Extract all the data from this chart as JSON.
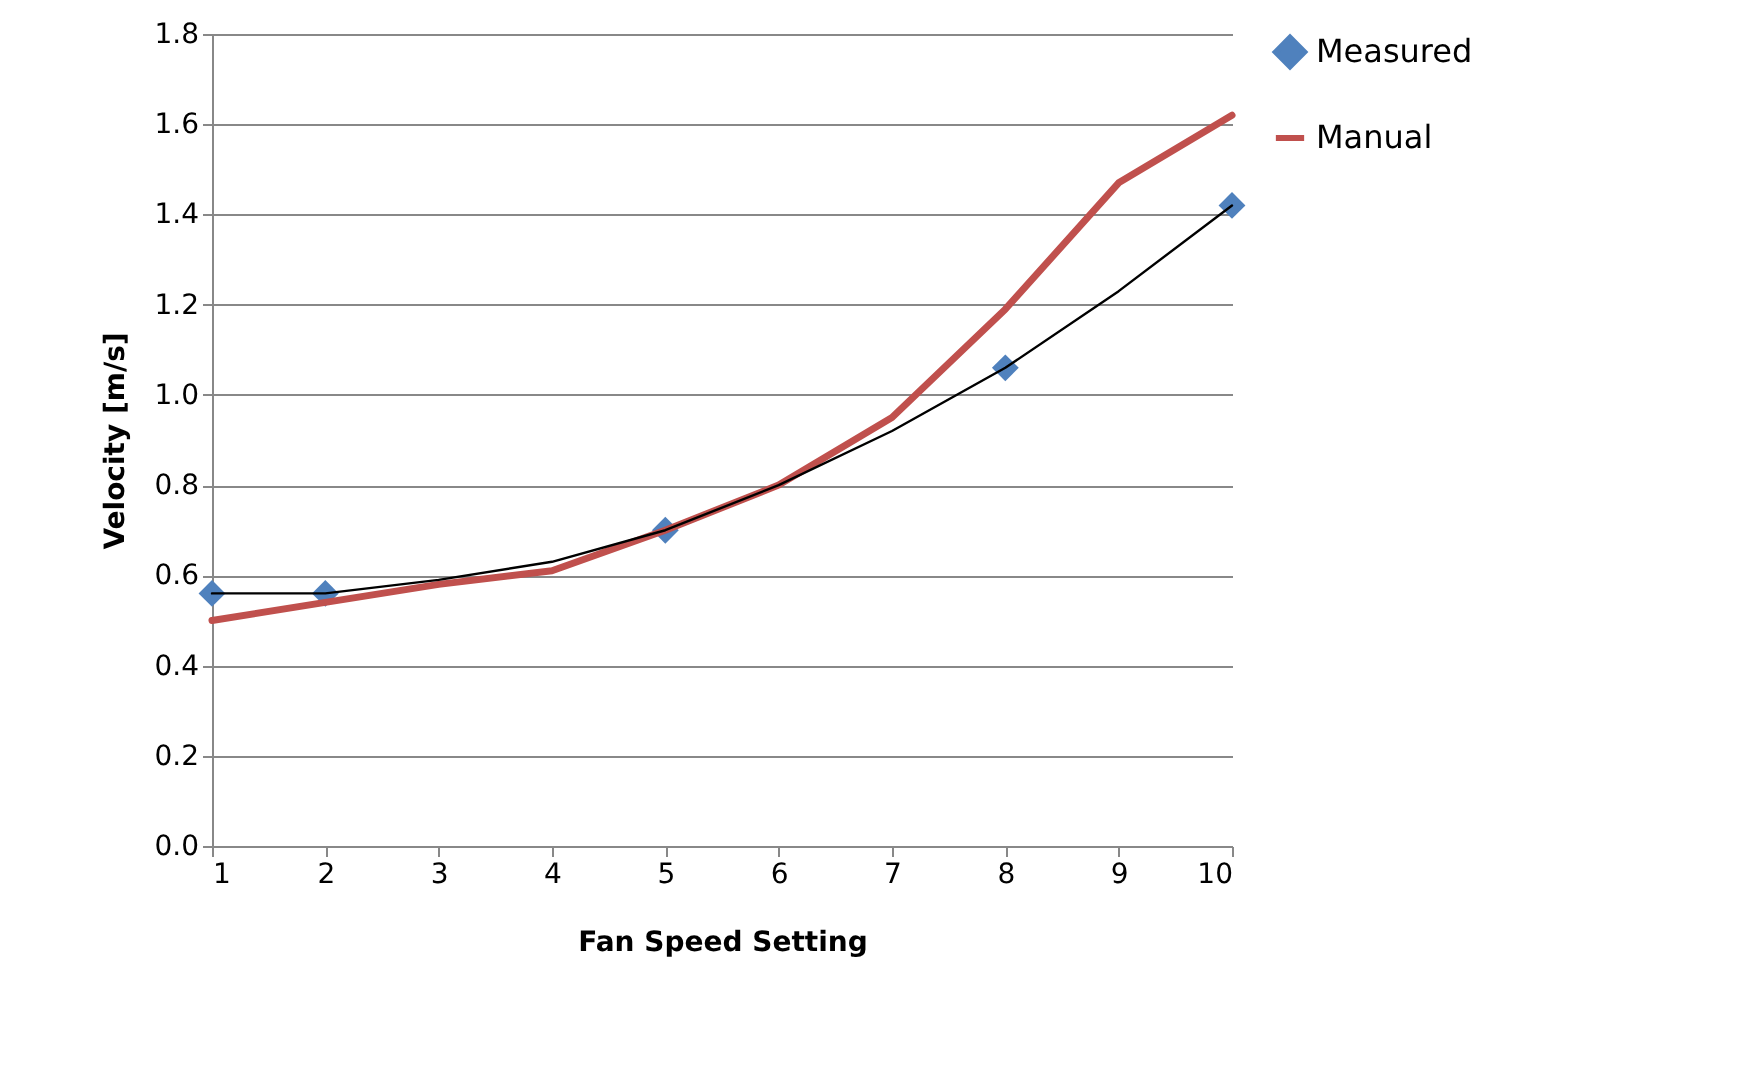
{
  "chart_data": {
    "type": "line",
    "xlabel": "Fan Speed Setting",
    "ylabel": "Velocity [m/s]",
    "x": [
      1,
      2,
      3,
      4,
      5,
      6,
      7,
      8,
      9,
      10
    ],
    "series": [
      {
        "name": "Measured",
        "type": "scatter",
        "marker": "diamond",
        "color": "#4f81bd",
        "x": [
          1,
          2,
          5,
          8,
          10
        ],
        "values": [
          0.56,
          0.56,
          0.7,
          1.06,
          1.42
        ]
      },
      {
        "name": "Manual",
        "type": "line",
        "marker": "none",
        "color": "#c0504d",
        "values": [
          0.5,
          0.54,
          0.58,
          0.61,
          0.7,
          0.8,
          0.95,
          1.19,
          1.47,
          1.62
        ]
      },
      {
        "type": "line",
        "marker": "none",
        "color": "#000000",
        "values": [
          0.56,
          0.56,
          0.59,
          0.63,
          0.7,
          0.8,
          0.92,
          1.06,
          1.23,
          1.42
        ]
      }
    ],
    "xlim": [
      1,
      10
    ],
    "xticks": [
      1,
      2,
      3,
      4,
      5,
      6,
      7,
      8,
      9,
      10
    ],
    "ylim": [
      0,
      1.8
    ],
    "yticks": [
      {
        "value": 0,
        "label": "0.0"
      },
      0.2,
      0.4,
      0.6,
      0.8,
      {
        "value": 1,
        "label": "1.0"
      },
      1.2,
      1.4,
      1.6,
      1.8
    ],
    "grid": "y",
    "legend": "right"
  }
}
